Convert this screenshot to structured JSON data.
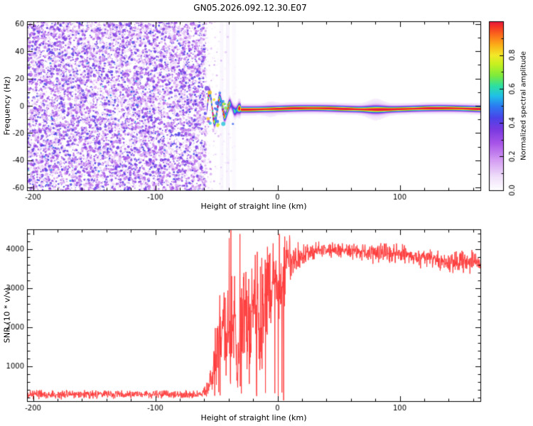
{
  "title": "GN05.2026.092.12.30.E07",
  "colors": {
    "background": "#ffffff",
    "axis": "#000000",
    "snr_line": "#ff3b3b"
  },
  "colormap": [
    [
      0.0,
      "#ffffff"
    ],
    [
      0.08,
      "#f0e0fa"
    ],
    [
      0.18,
      "#d49cf2"
    ],
    [
      0.28,
      "#a855e8"
    ],
    [
      0.36,
      "#7a3ae0"
    ],
    [
      0.43,
      "#4a43e8"
    ],
    [
      0.5,
      "#2b7bf2"
    ],
    [
      0.56,
      "#20c0e8"
    ],
    [
      0.62,
      "#2ee0a0"
    ],
    [
      0.68,
      "#7dea3c"
    ],
    [
      0.75,
      "#c8f020"
    ],
    [
      0.8,
      "#f2e929"
    ],
    [
      0.86,
      "#fbb018"
    ],
    [
      0.92,
      "#fb6d1c"
    ],
    [
      0.97,
      "#f43425"
    ],
    [
      1.0,
      "#e8173d"
    ]
  ],
  "chart_data": [
    {
      "type": "heatmap",
      "panel": "spectrogram",
      "xlabel": "Height of straight line (km)",
      "ylabel": "Frequency (Hz)",
      "xlim": [
        -205,
        166
      ],
      "ylim": [
        -62,
        62
      ],
      "x_ticks": [
        "-200",
        "-100",
        "0",
        "100"
      ],
      "x_tick_values": [
        -200,
        -100,
        0,
        100
      ],
      "y_ticks": [
        "60",
        "40",
        "20",
        "0",
        "-20",
        "-40",
        "-60"
      ],
      "y_tick_values": [
        60,
        40,
        20,
        0,
        -20,
        -40,
        -60
      ],
      "grid": false,
      "colorbar": {
        "label": "Normalized spectral amplitude",
        "ticks": [
          "0.0",
          "0.2",
          "0.4",
          "0.6",
          "0.8"
        ],
        "tick_values": [
          0.0,
          0.2,
          0.4,
          0.6,
          0.8
        ],
        "range": [
          0,
          1
        ]
      },
      "noise_region": {
        "x_from": -205,
        "x_to": -59,
        "max_amplitude": 0.45,
        "note": "broadband low-amplitude speckle noise over all frequencies"
      },
      "signal_ridge": {
        "x_start": -58,
        "center_hz": -2,
        "wobble_x_to": -30,
        "wobble_amplitude_hz": 13,
        "wobble_period_km": 8.5,
        "peak_amplitude": 0.97,
        "broadening_bump_x": 80,
        "note": "narrow high-amplitude ridge near 0 Hz; oscillating/beaded between -58 and -30 km, then flat to right edge"
      }
    },
    {
      "type": "line",
      "panel": "snr",
      "xlabel": "Height of straight line (km)",
      "ylabel": "SNR (10 * v/v)",
      "xlim": [
        -205,
        166
      ],
      "ylim": [
        100,
        4500
      ],
      "x_ticks": [
        "-200",
        "-100",
        "0",
        "100"
      ],
      "x_tick_values": [
        -200,
        -100,
        0,
        100
      ],
      "y_ticks": [
        "1000",
        "2000",
        "3000",
        "4000"
      ],
      "y_tick_values": [
        1000,
        2000,
        3000,
        4000
      ],
      "grid": false,
      "series": [
        {
          "name": "SNR",
          "color": "#ff3b3b",
          "envelope_keypoints": [
            [
              -205,
              270,
              130
            ],
            [
              -62,
              270,
              130
            ],
            [
              -57,
              380,
              280
            ],
            [
              -52,
              1000,
              900
            ],
            [
              -48,
              1800,
              1700
            ],
            [
              -44,
              2100,
              2100
            ],
            [
              -40,
              1500,
              1400
            ],
            [
              -36,
              2400,
              2000
            ],
            [
              -33,
              1000,
              950
            ],
            [
              -30,
              1600,
              1500
            ],
            [
              -26,
              2600,
              1900
            ],
            [
              -22,
              2200,
              2100
            ],
            [
              -18,
              2700,
              1800
            ],
            [
              -14,
              2300,
              2200
            ],
            [
              -10,
              2900,
              1600
            ],
            [
              -6,
              3100,
              1400
            ],
            [
              -2,
              3300,
              1200
            ],
            [
              2,
              3200,
              1500
            ],
            [
              6,
              3500,
              1000
            ],
            [
              10,
              3600,
              800
            ],
            [
              15,
              3750,
              550
            ],
            [
              20,
              3850,
              400
            ],
            [
              30,
              3950,
              260
            ],
            [
              50,
              3980,
              230
            ],
            [
              70,
              3920,
              280
            ],
            [
              85,
              3850,
              360
            ],
            [
              100,
              3880,
              260
            ],
            [
              115,
              3800,
              290
            ],
            [
              130,
              3720,
              310
            ],
            [
              145,
              3650,
              330
            ],
            [
              158,
              3700,
              350
            ],
            [
              166,
              3620,
              300
            ]
          ]
        }
      ]
    }
  ]
}
